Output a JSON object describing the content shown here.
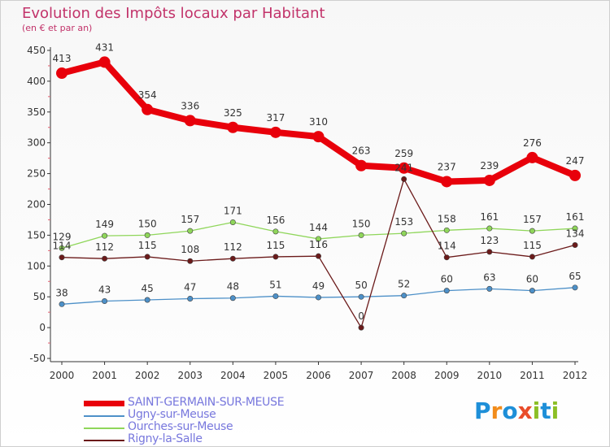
{
  "title": "Evolution des Impôts locaux par Habitant",
  "subtitle": "(en € et par an)",
  "brand": {
    "text": "Proxiti",
    "letters": [
      "P",
      "r",
      "o",
      "x",
      "i",
      "t",
      "i"
    ],
    "colors": [
      "#1e8fd8",
      "#f28c1b",
      "#1e8fd8",
      "#e94c2a",
      "#8cbf26",
      "#1e8fd8",
      "#8cbf26"
    ]
  },
  "chart_data": {
    "type": "line",
    "x": [
      2000,
      2001,
      2002,
      2003,
      2004,
      2005,
      2006,
      2007,
      2008,
      2009,
      2010,
      2011,
      2012
    ],
    "ylim": [
      -50,
      450
    ],
    "yticks": [
      -50,
      0,
      50,
      100,
      150,
      200,
      250,
      300,
      350,
      400,
      450
    ],
    "grid": false,
    "legend_position": "bottom-left",
    "series": [
      {
        "name": "SAINT-GERMAIN-SUR-MEUSE",
        "color": "#e8000b",
        "width": 8,
        "marker": 7,
        "values": [
          413,
          431,
          354,
          336,
          325,
          317,
          310,
          263,
          259,
          237,
          239,
          276,
          247
        ]
      },
      {
        "name": "Ugny-sur-Meuse",
        "color": "#4d90c8",
        "width": 1.3,
        "marker": 3.2,
        "values": [
          38,
          43,
          45,
          47,
          48,
          51,
          49,
          50,
          52,
          60,
          63,
          60,
          65
        ]
      },
      {
        "name": "Ourches-sur-Meuse",
        "color": "#8fd65a",
        "width": 1.3,
        "marker": 3.2,
        "values": [
          129,
          149,
          150,
          157,
          171,
          156,
          144,
          150,
          153,
          158,
          161,
          157,
          161
        ]
      },
      {
        "name": "Rigny-la-Salle",
        "color": "#6b1a1a",
        "width": 1.3,
        "marker": 3.2,
        "values": [
          114,
          112,
          115,
          108,
          112,
          115,
          116,
          0,
          241,
          114,
          123,
          115,
          134
        ]
      }
    ]
  }
}
